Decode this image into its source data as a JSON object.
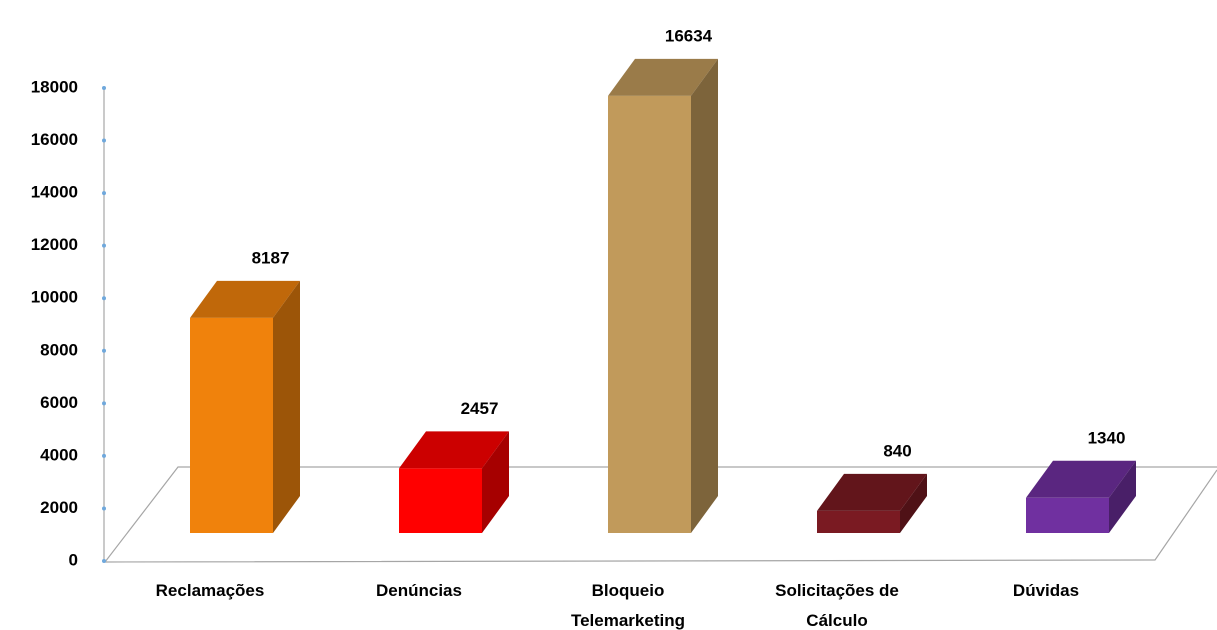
{
  "chart_data": {
    "type": "bar3d",
    "categories": [
      "Reclamações",
      "Denúncias",
      "Bloqueio\nTelemarketing",
      "Solicitações de\nCálculo",
      "Dúvidas"
    ],
    "values": [
      8187,
      2457,
      16634,
      840,
      1340
    ],
    "colors": [
      "#f0820c",
      "#ff0000",
      "#c19a5b",
      "#7a1a22",
      "#7030a0"
    ],
    "ylim": [
      0,
      18000
    ],
    "yticks": [
      0,
      2000,
      4000,
      6000,
      8000,
      10000,
      12000,
      14000,
      16000,
      18000
    ]
  }
}
